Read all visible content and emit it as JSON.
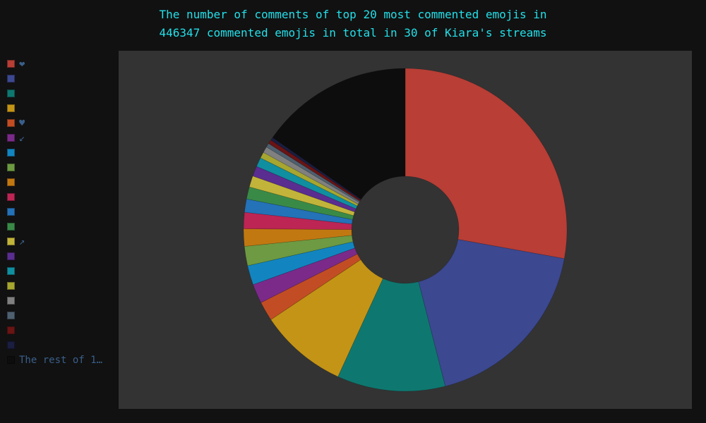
{
  "chart_data": {
    "type": "pie",
    "donut": true,
    "title_lines": [
      "The number of comments of top 20 most commented emojis in",
      "446347 commented emojis in total in 30 of Kiara's streams"
    ],
    "legend_position": "left",
    "slices": [
      {
        "label": "❤",
        "share": 27.3,
        "color": "#b83e36"
      },
      {
        "label": "",
        "share": 17.8,
        "color": "#3c4890"
      },
      {
        "label": "",
        "share": 10.6,
        "color": "#0e7870"
      },
      {
        "label": "",
        "share": 8.6,
        "color": "#c49416"
      },
      {
        "label": "♥",
        "share": 1.9,
        "color": "#c24d24"
      },
      {
        "label": "↙",
        "share": 1.9,
        "color": "#7b2a8a"
      },
      {
        "label": "",
        "share": 1.9,
        "color": "#1285c0"
      },
      {
        "label": "",
        "share": 1.9,
        "color": "#6d9a42"
      },
      {
        "label": "",
        "share": 1.7,
        "color": "#c27811"
      },
      {
        "label": "",
        "share": 1.6,
        "color": "#bc2554"
      },
      {
        "label": "",
        "share": 1.3,
        "color": "#2472b8"
      },
      {
        "label": "",
        "share": 1.2,
        "color": "#3a8a47"
      },
      {
        "label": "↗",
        "share": 1.1,
        "color": "#c2b43a"
      },
      {
        "label": "",
        "share": 1.0,
        "color": "#5a2d90"
      },
      {
        "label": "",
        "share": 0.9,
        "color": "#108fa0"
      },
      {
        "label": "",
        "share": 0.6,
        "color": "#a6a630"
      },
      {
        "label": "",
        "share": 0.6,
        "color": "#808080"
      },
      {
        "label": "",
        "share": 0.4,
        "color": "#4e6070"
      },
      {
        "label": "",
        "share": 0.4,
        "color": "#6a1414"
      },
      {
        "label": "",
        "share": 0.3,
        "color": "#1a1e40"
      },
      {
        "label": "The rest of 12…",
        "share": 15.0,
        "color": "#0d0d0d"
      }
    ]
  }
}
